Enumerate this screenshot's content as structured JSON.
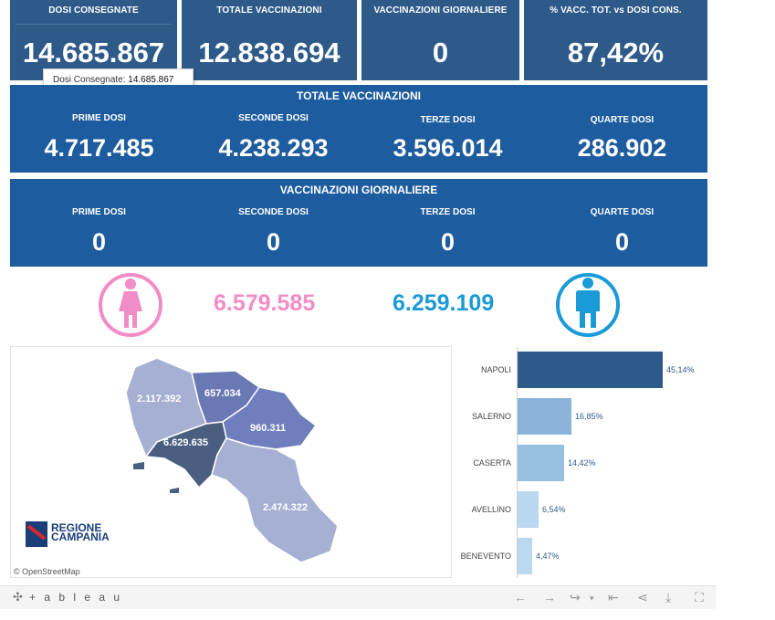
{
  "kpis": [
    {
      "title": "DOSI  CONSEGNATE",
      "value": "14.685.867"
    },
    {
      "title": "TOTALE VACCINAZIONI",
      "value": "12.838.694"
    },
    {
      "title": "VACCINAZIONI GIORNALIERE",
      "value": "0"
    },
    {
      "title": "% VACC. TOT. vs DOSI CONS.",
      "value": "87,42%"
    }
  ],
  "tooltip": {
    "label": "Dosi Consegnate:",
    "value": "14.685.867"
  },
  "totale": {
    "title": "TOTALE VACCINAZIONI",
    "cols": [
      {
        "label": "PRIME DOSI",
        "value": "4.717.485"
      },
      {
        "label": "SECONDE DOSI",
        "value": "4.238.293"
      },
      {
        "label": "TERZE DOSI",
        "value": "3.596.014"
      },
      {
        "label": "QUARTE DOSI",
        "value": "286.902"
      }
    ]
  },
  "giornaliere": {
    "title": "VACCINAZIONI GIORNALIERE",
    "cols": [
      {
        "label": "PRIME DOSI",
        "value": "0"
      },
      {
        "label": "SECONDE DOSI",
        "value": "0"
      },
      {
        "label": "TERZE DOSI",
        "value": "0"
      },
      {
        "label": "QUARTE DOSI",
        "value": "0"
      }
    ]
  },
  "gender": {
    "female": {
      "value": "6.579.585",
      "icon": "female-icon",
      "color": "#f28cc6"
    },
    "male": {
      "value": "6.259.109",
      "icon": "male-icon",
      "color": "#1a9ad6"
    }
  },
  "map": {
    "provinces": [
      {
        "name": "Caserta",
        "value": "2.117.392"
      },
      {
        "name": "Benevento",
        "value": "657.034"
      },
      {
        "name": "Avellino",
        "value": "960.311"
      },
      {
        "name": "Napoli",
        "value": "6.629.635"
      },
      {
        "name": "Salerno",
        "value": "2.474.322"
      }
    ],
    "attribution": "© OpenStreetMap",
    "logo": {
      "line1": "REGIONE",
      "line2": "CAMPANIA"
    }
  },
  "bars": [
    {
      "label": "NAPOLI",
      "pct": 45.14,
      "pct_label": "45,14%",
      "color": "#2e5a8a"
    },
    {
      "label": "SALERNO",
      "pct": 16.85,
      "pct_label": "16,85%",
      "color": "#8ab4da"
    },
    {
      "label": "CASERTA",
      "pct": 14.42,
      "pct_label": "14,42%",
      "color": "#97bfe0"
    },
    {
      "label": "AVELLINO",
      "pct": 6.54,
      "pct_label": "6,54%",
      "color": "#b9d7ee"
    },
    {
      "label": "BENEVENTO",
      "pct": 4.47,
      "pct_label": "4,47%",
      "color": "#bcd8ef"
    }
  ],
  "footer": {
    "brand": "+ a b l e a u",
    "icons": [
      "undo-icon",
      "redo-icon",
      "revert-icon",
      "reset-icon",
      "share-icon",
      "download-icon",
      "fullscreen-icon"
    ]
  }
}
